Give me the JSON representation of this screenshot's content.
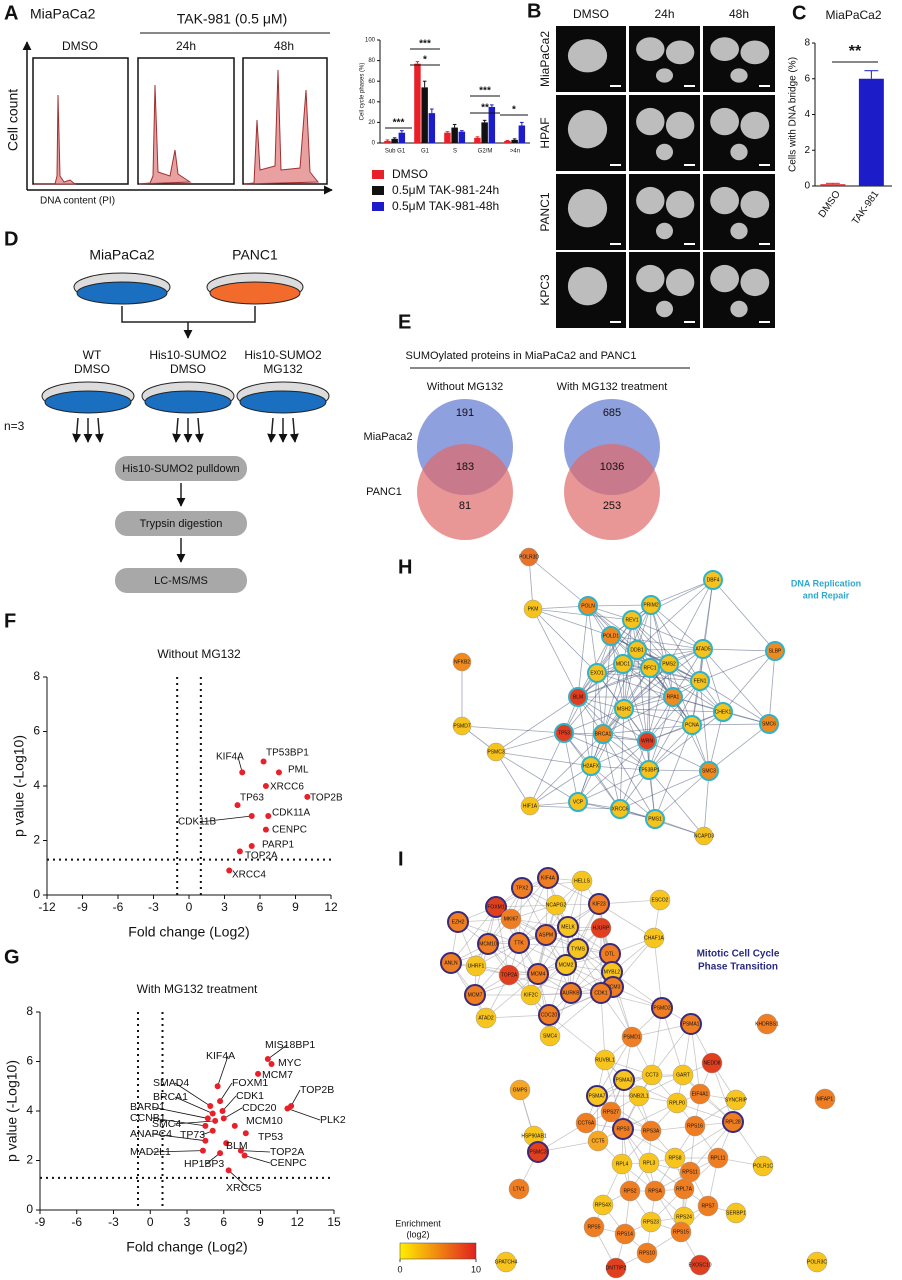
{
  "chart_data": [
    {
      "type": "bar",
      "y_label": "Cell cycle phases (%)",
      "categories": [
        "Sub G1",
        "G1",
        "S",
        "G2/M",
        ">4n"
      ],
      "series": [
        {
          "name": "DMSO",
          "color": "#e8202a",
          "values": [
            2,
            77,
            10,
            5,
            2
          ],
          "errors": [
            1,
            2,
            1,
            1,
            0.5
          ]
        },
        {
          "name": "0.5μM TAK-981-24h",
          "color": "#111111",
          "values": [
            4,
            54,
            15,
            20,
            3
          ],
          "errors": [
            1,
            6,
            3,
            2,
            1
          ]
        },
        {
          "name": "0.5μM TAK-981-48h",
          "color": "#1c1cc8",
          "values": [
            10,
            29,
            11,
            35,
            17
          ],
          "errors": [
            2,
            4,
            1,
            2,
            3
          ]
        }
      ],
      "ylim": [
        0,
        100
      ],
      "yticks": [
        0,
        20,
        40,
        60,
        80,
        100
      ],
      "significance": [
        "***",
        "*",
        "***",
        "**",
        "***",
        "*"
      ]
    },
    {
      "type": "bar",
      "title": "MiaPaCa2",
      "y_label": "Cells with DNA bridge (%)",
      "categories": [
        "DMSO",
        "TAK-981"
      ],
      "values": [
        0.1,
        6.0
      ],
      "errors": [
        0.05,
        0.45
      ],
      "colors": [
        "#e8202a",
        "#1c1cc8"
      ],
      "ylim": [
        0,
        8
      ],
      "yticks": [
        0,
        2,
        4,
        6,
        8
      ],
      "significance": "**"
    },
    {
      "type": "scatter",
      "title": "Without MG132",
      "x_label": "Fold change (Log2)",
      "y_label": "p value (-Log10)",
      "color": "#e8202a",
      "labels": [
        "KIF4A",
        "TP53BP1",
        "PML",
        "XRCC6",
        "TP63",
        "TOP2B",
        "CDK11B",
        "CDK11A",
        "CENPC",
        "PARP1",
        "TOP2A",
        "XRCC4"
      ],
      "x": [
        4.5,
        6.3,
        7.6,
        6.5,
        4.1,
        10.0,
        5.3,
        6.7,
        6.5,
        5.3,
        4.3,
        3.4
      ],
      "values": [
        4.5,
        4.9,
        4.5,
        4.0,
        3.3,
        3.6,
        2.9,
        2.9,
        2.4,
        1.8,
        1.6,
        0.9
      ],
      "xlim": [
        -12,
        12
      ],
      "xticks": [
        -12,
        -9,
        -6,
        -3,
        0,
        3,
        6,
        9,
        12
      ],
      "ylim": [
        0,
        8
      ],
      "yticks": [
        0,
        2,
        4,
        6,
        8
      ],
      "thresholds": {
        "x": [
          -1,
          1
        ],
        "y": 1.3
      }
    },
    {
      "type": "scatter",
      "title": "With MG132 treatment",
      "x_label": "Fold change (Log2)",
      "y_label": "p value (-Log10)",
      "color": "#e8202a",
      "labels": [
        "MIS18BP1",
        "MYC",
        "MCM7",
        "TOP2B",
        "PLK2",
        "KIF4A",
        "FOXM1",
        "SMAD4",
        "CDK1",
        "BRCA1",
        "CDC20",
        "BARD1",
        "CCNB1",
        "MCM10",
        "SMC4",
        "TP73",
        "TP53",
        "ANAPC4",
        "TOP2A",
        "BLM",
        "MAD2L1",
        "HP1BP3",
        "CENPC",
        "XRCC5"
      ],
      "x": [
        9.6,
        9.9,
        8.8,
        11.5,
        11.2,
        5.5,
        5.7,
        4.9,
        5.9,
        5.1,
        6.0,
        4.7,
        4.5,
        6.9,
        5.3,
        5.1,
        7.8,
        4.5,
        7.4,
        6.2,
        4.3,
        5.7,
        7.7,
        6.4
      ],
      "values": [
        6.1,
        5.9,
        5.5,
        4.2,
        4.1,
        5.0,
        4.4,
        4.2,
        4.0,
        3.9,
        3.7,
        3.7,
        3.4,
        3.4,
        3.6,
        3.2,
        3.1,
        2.8,
        2.4,
        2.7,
        2.4,
        2.3,
        2.2,
        1.6
      ],
      "xlim": [
        -9,
        15
      ],
      "xticks": [
        -9,
        -6,
        -3,
        0,
        3,
        6,
        9,
        12,
        15
      ],
      "ylim": [
        0,
        8
      ],
      "yticks": [
        0,
        2,
        4,
        6,
        8
      ],
      "thresholds": {
        "x": [
          -1,
          1
        ],
        "y": 1.3
      }
    }
  ],
  "panels": {
    "A": {
      "letter": "A",
      "title": "MiaPaCa2",
      "treatment": "TAK-981 (0.5 μM)",
      "conditions": [
        "DMSO",
        "24h",
        "48h"
      ],
      "y_label": "Cell count",
      "x_label": "DNA content (PI)"
    },
    "B": {
      "letter": "B",
      "columns": [
        "DMSO",
        "24h",
        "48h"
      ],
      "rows": [
        "MiaPaCa2",
        "HPAF",
        "PANC1",
        "KPC3"
      ]
    },
    "C": {
      "letter": "C"
    },
    "D": {
      "letter": "D",
      "cells": [
        "MiaPaCa2",
        "PANC1"
      ],
      "conditions": [
        [
          "WT",
          "DMSO"
        ],
        [
          "His10-SUMO2",
          "DMSO"
        ],
        [
          "His10-SUMO2",
          "MG132"
        ]
      ],
      "replicates": "n=3",
      "steps": [
        "His10-SUMO2 pulldown",
        "Trypsin digestion",
        "LC-MS/MS"
      ]
    },
    "E": {
      "letter": "E",
      "title": "SUMOylated proteins in MiaPaCa2 and PANC1",
      "sets": [
        "MiaPaca2",
        "PANC1"
      ],
      "venns": [
        {
          "title": "Without MG132",
          "counts": [
            191,
            183,
            81
          ]
        },
        {
          "title": "With MG132 treatment",
          "counts": [
            685,
            1036,
            253
          ]
        }
      ]
    },
    "F": {
      "letter": "F"
    },
    "G": {
      "letter": "G"
    },
    "H": {
      "letter": "H",
      "legend": [
        "DNA Replication",
        "and Repair"
      ],
      "nodes": [
        {
          "label": "POLR3D",
          "color": "#e8742a",
          "ring": false
        },
        {
          "label": "DBF4",
          "color": "#f6c21c",
          "ring": true
        },
        {
          "label": "PKM",
          "color": "#f6c21c",
          "ring": false
        },
        {
          "label": "POLN",
          "color": "#f08a1e",
          "ring": true
        },
        {
          "label": "PRIM2",
          "color": "#f6c21c",
          "ring": true
        },
        {
          "label": "REV1",
          "color": "#f6c21c",
          "ring": true
        },
        {
          "label": "SLBP",
          "color": "#f08a1e",
          "ring": true
        },
        {
          "label": "ATAD5",
          "color": "#f6c21c",
          "ring": true
        },
        {
          "label": "POLD1",
          "color": "#f08a1e",
          "ring": true
        },
        {
          "label": "DDB1",
          "color": "#f6c21c",
          "ring": true
        },
        {
          "label": "MDC1",
          "color": "#f6c21c",
          "ring": true
        },
        {
          "label": "RFC1",
          "color": "#f6c21c",
          "ring": true
        },
        {
          "label": "PMS2",
          "color": "#f6c21c",
          "ring": true
        },
        {
          "label": "FEN1",
          "color": "#f6c21c",
          "ring": true
        },
        {
          "label": "EXO1",
          "color": "#f6c21c",
          "ring": true
        },
        {
          "label": "NFKB2",
          "color": "#f08a1e",
          "ring": false
        },
        {
          "label": "BLM",
          "color": "#e23c20",
          "ring": true
        },
        {
          "label": "MSH2",
          "color": "#f6c21c",
          "ring": true
        },
        {
          "label": "RPA1",
          "color": "#f08a1e",
          "ring": true
        },
        {
          "label": "CHEK1",
          "color": "#f6c21c",
          "ring": true
        },
        {
          "label": "PCNA",
          "color": "#f6c21c",
          "ring": true
        },
        {
          "label": "TP53",
          "color": "#e23c20",
          "ring": true
        },
        {
          "label": "BRCA1",
          "color": "#f08a1e",
          "ring": true
        },
        {
          "label": "WRN",
          "color": "#e23c20",
          "ring": true
        },
        {
          "label": "SMC6",
          "color": "#f08a1e",
          "ring": true
        },
        {
          "label": "PSMD7",
          "color": "#f6c21c",
          "ring": false
        },
        {
          "label": "PSMC3",
          "color": "#f6c21c",
          "ring": false
        },
        {
          "label": "H2AFX",
          "color": "#f6c21c",
          "ring": true
        },
        {
          "label": "TP53BP1",
          "color": "#f6c21c",
          "ring": true
        },
        {
          "label": "SMC3",
          "color": "#f08a1e",
          "ring": true
        },
        {
          "label": "HIF1A",
          "color": "#f6c21c",
          "ring": false
        },
        {
          "label": "VCP",
          "color": "#f6c21c",
          "ring": true
        },
        {
          "label": "XRCC6",
          "color": "#f6c21c",
          "ring": true
        },
        {
          "label": "PMS1",
          "color": "#f6c21c",
          "ring": true
        },
        {
          "label": "NCAPD3",
          "color": "#f6c21c",
          "ring": false
        }
      ]
    },
    "I": {
      "letter": "I",
      "legend": [
        "Mitotic Cell Cycle",
        "Phase Transition"
      ],
      "nodes": [
        {
          "label": "TPX2",
          "color": "#ef7d22",
          "ring": true
        },
        {
          "label": "KIF4A",
          "color": "#ef7d22",
          "ring": true
        },
        {
          "label": "HELLS",
          "color": "#f7c51e",
          "ring": false
        },
        {
          "label": "FOXM1",
          "color": "#e0401f",
          "ring": true
        },
        {
          "label": "NCAPG2",
          "color": "#f7c51e",
          "ring": false
        },
        {
          "label": "KIF23",
          "color": "#ef7d22",
          "ring": true
        },
        {
          "label": "ESCO2",
          "color": "#f7c51e",
          "ring": false
        },
        {
          "label": "MKI67",
          "color": "#ef7d22",
          "ring": false
        },
        {
          "label": "ASPM",
          "color": "#ef7d22",
          "ring": true
        },
        {
          "label": "MELK",
          "color": "#f7c51e",
          "ring": true
        },
        {
          "label": "HJURP",
          "color": "#e0401f",
          "ring": false
        },
        {
          "label": "EZH2",
          "color": "#ef7d22",
          "ring": true
        },
        {
          "label": "MCM10",
          "color": "#ef7d22",
          "ring": true
        },
        {
          "label": "TTK",
          "color": "#ef7d22",
          "ring": true
        },
        {
          "label": "TYMS",
          "color": "#f7c51e",
          "ring": true
        },
        {
          "label": "CHAF1A",
          "color": "#f7c51e",
          "ring": false
        },
        {
          "label": "DTL",
          "color": "#ef7d22",
          "ring": true
        },
        {
          "label": "UHRF1",
          "color": "#f7c51e",
          "ring": false
        },
        {
          "label": "TOP2A",
          "color": "#e0401f",
          "ring": false
        },
        {
          "label": "MCM4",
          "color": "#ef7d22",
          "ring": true
        },
        {
          "label": "MCM2",
          "color": "#f7c51e",
          "ring": true
        },
        {
          "label": "MYBL2",
          "color": "#f7c51e",
          "ring": true
        },
        {
          "label": "MCM3",
          "color": "#ef7d22",
          "ring": true
        },
        {
          "label": "ANLN",
          "color": "#ef7d22",
          "ring": true
        },
        {
          "label": "MCM7",
          "color": "#ef7d22",
          "ring": true
        },
        {
          "label": "KIF2C",
          "color": "#f7c51e",
          "ring": false
        },
        {
          "label": "AURKB",
          "color": "#ef7d22",
          "ring": true
        },
        {
          "label": "CDK1",
          "color": "#ef7d22",
          "ring": true
        },
        {
          "label": "ATAD2",
          "color": "#f7c51e",
          "ring": false
        },
        {
          "label": "CDC20",
          "color": "#ef7d22",
          "ring": true
        },
        {
          "label": "SMC4",
          "color": "#f7c51e",
          "ring": false
        },
        {
          "label": "PSMD1",
          "color": "#ef7d22",
          "ring": false
        },
        {
          "label": "PSMD2",
          "color": "#ef7d22",
          "ring": true
        },
        {
          "label": "PSMA1",
          "color": "#ef7d22",
          "ring": true
        },
        {
          "label": "KHDRBS1",
          "color": "#ef7d22",
          "ring": false
        },
        {
          "label": "RUVBL1",
          "color": "#f7c51e",
          "ring": false
        },
        {
          "label": "CCT3",
          "color": "#f7c51e",
          "ring": false
        },
        {
          "label": "GART",
          "color": "#f7c51e",
          "ring": false
        },
        {
          "label": "NEDD8",
          "color": "#e0401f",
          "ring": false
        },
        {
          "label": "PSMA3",
          "color": "#f7c51e",
          "ring": true
        },
        {
          "label": "PSMA7",
          "color": "#f7c51e",
          "ring": true
        },
        {
          "label": "GMPS",
          "color": "#f5a623",
          "ring": false
        },
        {
          "label": "GNB2L1",
          "color": "#f7c51e",
          "ring": false
        },
        {
          "label": "EIF4A1",
          "color": "#ef7d22",
          "ring": false
        },
        {
          "label": "RPLP0",
          "color": "#f7c51e",
          "ring": false
        },
        {
          "label": "SYNCRIP",
          "color": "#f7c51e",
          "ring": false
        },
        {
          "label": "MFAP1",
          "color": "#ef7d22",
          "ring": false
        },
        {
          "label": "RPS27",
          "color": "#ef7d22",
          "ring": false
        },
        {
          "label": "CCT6A",
          "color": "#ef7d22",
          "ring": false
        },
        {
          "label": "RPS3",
          "color": "#ef7d22",
          "ring": true
        },
        {
          "label": "RPS3A",
          "color": "#ef7d22",
          "ring": false
        },
        {
          "label": "RPS16",
          "color": "#ef7d22",
          "ring": false
        },
        {
          "label": "RPL28",
          "color": "#ef7d22",
          "ring": true
        },
        {
          "label": "HSP90AB1",
          "color": "#f7c51e",
          "ring": false
        },
        {
          "label": "CCT5",
          "color": "#f5a623",
          "ring": false
        },
        {
          "label": "PSMC3",
          "color": "#e0401f",
          "ring": true
        },
        {
          "label": "RPL4",
          "color": "#f7c51e",
          "ring": false
        },
        {
          "label": "RPL3",
          "color": "#f7c51e",
          "ring": false
        },
        {
          "label": "RPS8",
          "color": "#f7c51e",
          "ring": false
        },
        {
          "label": "RPL11",
          "color": "#ef7d22",
          "ring": false
        },
        {
          "label": "RPS11",
          "color": "#ef7d22",
          "ring": false
        },
        {
          "label": "POLR1C",
          "color": "#f7c51e",
          "ring": false
        },
        {
          "label": "RPS2",
          "color": "#ef7d22",
          "ring": false
        },
        {
          "label": "RPSA",
          "color": "#ef7d22",
          "ring": false
        },
        {
          "label": "RPL7A",
          "color": "#ef7d22",
          "ring": false
        },
        {
          "label": "LTV1",
          "color": "#ef7d22",
          "ring": false
        },
        {
          "label": "RPS4X",
          "color": "#f7c51e",
          "ring": false
        },
        {
          "label": "RPS7",
          "color": "#ef7d22",
          "ring": false
        },
        {
          "label": "SERBP1",
          "color": "#f7c51e",
          "ring": false
        },
        {
          "label": "RPS5",
          "color": "#ef7d22",
          "ring": false
        },
        {
          "label": "RPS23",
          "color": "#f7c51e",
          "ring": false
        },
        {
          "label": "RPS24",
          "color": "#f7c51e",
          "ring": false
        },
        {
          "label": "RPS14",
          "color": "#ef7d22",
          "ring": false
        },
        {
          "label": "RPS15",
          "color": "#ef7d22",
          "ring": false
        },
        {
          "label": "RPS10",
          "color": "#ef7d22",
          "ring": false
        },
        {
          "label": "GPATCH4",
          "color": "#f7c51e",
          "ring": false
        },
        {
          "label": "DNTTIP2",
          "color": "#e0401f",
          "ring": false
        },
        {
          "label": "EXOSC10",
          "color": "#e0401f",
          "ring": false
        },
        {
          "label": "POLR3C",
          "color": "#f7c51e",
          "ring": false
        }
      ],
      "colorbar": {
        "title": [
          "Enrichment",
          "(log2)"
        ],
        "ticks": [
          0,
          10
        ],
        "colors": [
          "#ffee00",
          "#e02020"
        ]
      }
    }
  }
}
